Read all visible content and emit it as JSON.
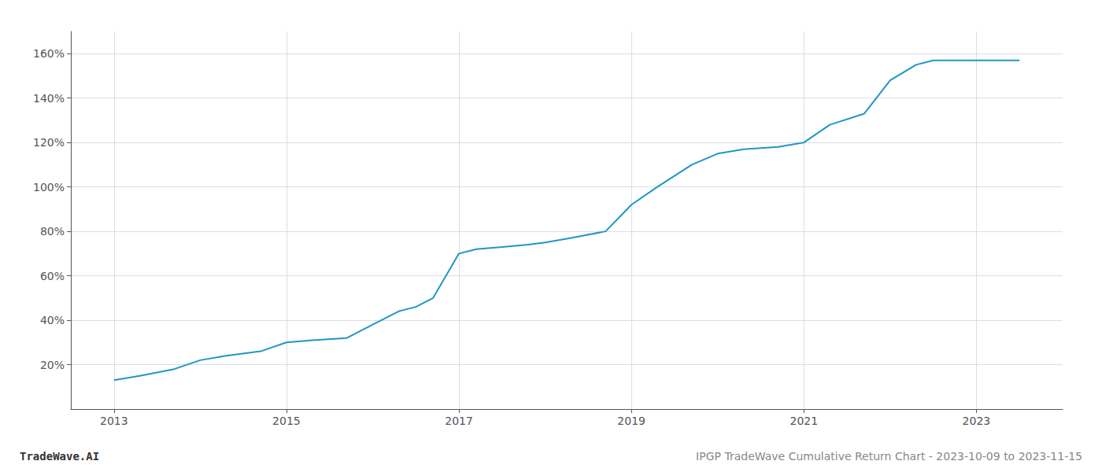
{
  "chart_data": {
    "type": "line",
    "title": "IPGP TradeWave Cumulative Return Chart - 2023-10-09 to 2023-11-15",
    "annotations": [
      "TradeWave.AI"
    ],
    "x": [
      2013.0,
      2013.3,
      2013.7,
      2014.0,
      2014.3,
      2014.7,
      2015.0,
      2015.3,
      2015.7,
      2016.0,
      2016.3,
      2016.5,
      2016.7,
      2017.0,
      2017.2,
      2017.5,
      2017.8,
      2018.0,
      2018.3,
      2018.7,
      2019.0,
      2019.3,
      2019.7,
      2020.0,
      2020.3,
      2020.7,
      2021.0,
      2021.3,
      2021.7,
      2022.0,
      2022.3,
      2022.5,
      2023.0,
      2023.5
    ],
    "values": [
      13,
      15,
      18,
      22,
      24,
      26,
      30,
      31,
      32,
      38,
      44,
      46,
      50,
      70,
      72,
      73,
      74,
      75,
      77,
      80,
      92,
      100,
      110,
      115,
      117,
      118,
      120,
      128,
      133,
      148,
      155,
      157,
      157,
      157
    ],
    "color": "#2196c4",
    "xlim": [
      2012.5,
      2024.0
    ],
    "ylim": [
      0,
      170
    ],
    "xticks": [
      2013,
      2015,
      2017,
      2019,
      2021,
      2023
    ],
    "yticks": [
      {
        "value": 20,
        "label": "20%"
      },
      {
        "value": 40,
        "label": "40%"
      },
      {
        "value": 60,
        "label": "60%"
      },
      {
        "value": 80,
        "label": "80%"
      },
      {
        "value": 100,
        "label": "100%"
      },
      {
        "value": 120,
        "label": "120%"
      },
      {
        "value": 140,
        "label": "140%"
      },
      {
        "value": 160,
        "label": "160%"
      }
    ],
    "grid": true
  }
}
